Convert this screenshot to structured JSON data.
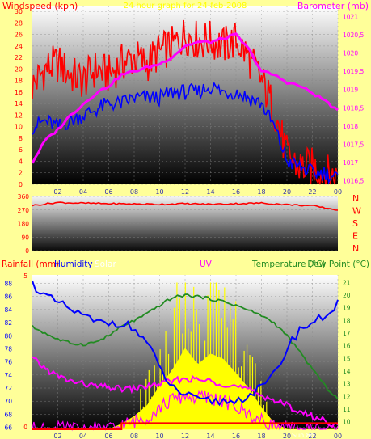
{
  "colors": {
    "background": "#ffff99",
    "wind": "#ff0000",
    "gust_avg": "#0000ff",
    "barometer": "#ff00ff",
    "humidity": "#0000ff",
    "temperature": "#228b22",
    "dewpoint": "#ff00ff",
    "solar": "#ffff00",
    "uv": "#ff00ff",
    "rainfall": "#ff0000",
    "panel_top": "#ffffff",
    "panel_bottom": "#000000"
  },
  "x_tick_labels": [
    "02",
    "04",
    "06",
    "08",
    "10",
    "12",
    "14",
    "16",
    "18",
    "20",
    "22",
    "00"
  ],
  "chart_data": [
    {
      "type": "line",
      "title": "24 hour graph for 24-feb-2008",
      "ylabel": "Windspeed (kph)",
      "y2label": "Barometer (mb)",
      "ylim": [
        0,
        31
      ],
      "y2lim": [
        1016.4,
        1021.3
      ],
      "yticks": [
        "0",
        "2",
        "4",
        "6",
        "8",
        "10",
        "12",
        "14",
        "16",
        "18",
        "20",
        "22",
        "24",
        "26",
        "28",
        "30"
      ],
      "y2ticks": [
        "1016,5",
        "1017",
        "1017,5",
        "1018",
        "1018,5",
        "1019",
        "1019,5",
        "1020",
        "1020,5",
        "1021"
      ],
      "x_hours": [
        0,
        1,
        2,
        3,
        4,
        5,
        6,
        7,
        8,
        9,
        10,
        11,
        12,
        13,
        14,
        15,
        16,
        17,
        18,
        19,
        20,
        21,
        22,
        23,
        24
      ],
      "series": [
        {
          "role": "gust",
          "values": [
            17,
            20,
            21,
            19,
            18,
            20,
            19,
            21,
            22,
            21,
            23,
            24,
            26,
            25,
            25,
            24,
            25,
            22,
            18,
            13,
            5,
            3,
            3,
            2,
            1
          ]
        },
        {
          "role": "average",
          "values": [
            10,
            11,
            10,
            11,
            12,
            13,
            14,
            14,
            15,
            15,
            15,
            16,
            16,
            16,
            17,
            16,
            16,
            15,
            14,
            10,
            4,
            3,
            2,
            2,
            1
          ]
        },
        {
          "role": "barometer",
          "values": [
            1017.0,
            1017.6,
            1017.9,
            1018.3,
            1018.6,
            1018.9,
            1019.1,
            1019.4,
            1019.5,
            1019.6,
            1019.7,
            1019.9,
            1020.2,
            1020.3,
            1020.3,
            1020.4,
            1020.5,
            1020.1,
            1019.5,
            1019.4,
            1019.2,
            1019.1,
            1018.9,
            1018.7,
            1018.4
          ]
        }
      ]
    },
    {
      "type": "line",
      "ylabel_ticks": [
        "0",
        "90",
        "180",
        "270",
        "360"
      ],
      "ylim": [
        0,
        360
      ],
      "compass": [
        "N",
        "W",
        "S",
        "E",
        "N"
      ],
      "x_hours": [
        0,
        2,
        4,
        6,
        8,
        10,
        12,
        14,
        16,
        18,
        20,
        22,
        24
      ],
      "series": [
        {
          "role": "direction",
          "values": [
            300,
            320,
            315,
            312,
            310,
            308,
            312,
            308,
            312,
            316,
            306,
            298,
            270
          ]
        }
      ]
    },
    {
      "type": "line",
      "legend": {
        "rainfall": "Rainfall (mm)",
        "humidity": "Humidity",
        "solar": "Solar",
        "uv": "UV",
        "temperature": "Temperature (°C)",
        "dewpoint": "Dew Point (°C)"
      },
      "left_ticks": [
        "66",
        "68",
        "70",
        "72",
        "74",
        "76",
        "78",
        "80",
        "82",
        "84",
        "86",
        "88"
      ],
      "left_ylim": [
        65.7,
        89.3
      ],
      "rain_ticks": [
        "0",
        "5"
      ],
      "right_ticks": [
        "10",
        "11",
        "12",
        "13",
        "14",
        "15",
        "16",
        "17",
        "18",
        "19",
        "20",
        "21"
      ],
      "right_ylim": [
        9.4,
        21.6
      ],
      "sun_label": "Sun 8h",
      "x_hours": [
        0,
        1,
        2,
        3,
        4,
        5,
        6,
        7,
        8,
        9,
        10,
        11,
        12,
        13,
        14,
        15,
        16,
        17,
        18,
        19,
        20,
        21,
        22,
        23,
        24
      ],
      "series": [
        {
          "role": "humidity",
          "values": [
            88,
            86,
            85,
            84,
            83,
            82,
            82,
            82,
            81,
            79,
            75,
            72,
            71,
            70,
            70,
            70,
            70,
            71,
            72,
            74,
            78,
            81,
            82,
            83,
            85
          ]
        },
        {
          "role": "temperature",
          "values": [
            17.5,
            17.0,
            16.5,
            16.2,
            16.1,
            16.3,
            16.8,
            17.5,
            18.0,
            18.5,
            19.2,
            19.8,
            20.0,
            19.9,
            19.7,
            19.5,
            19.2,
            18.8,
            18.4,
            17.8,
            16.8,
            15.5,
            14.2,
            12.8,
            11.8
          ]
        },
        {
          "role": "dewpoint",
          "values": [
            15.0,
            14.2,
            13.6,
            13.2,
            13.0,
            12.8,
            12.7,
            12.6,
            12.6,
            12.8,
            13.0,
            13.2,
            13.4,
            13.3,
            13.2,
            13.0,
            12.8,
            12.5,
            12.1,
            11.7,
            11.3,
            10.8,
            10.4,
            10.1,
            9.6
          ]
        },
        {
          "role": "solar",
          "values": [
            0,
            0,
            0,
            0,
            0,
            0,
            0,
            0.05,
            0.12,
            0.22,
            0.4,
            0.55,
            0.75,
            0.6,
            0.7,
            0.65,
            0.52,
            0.38,
            0.2,
            0.06,
            0,
            0,
            0,
            0,
            0
          ]
        },
        {
          "role": "uv",
          "values": [
            0,
            0,
            0,
            0,
            0,
            0,
            0,
            0.02,
            0.05,
            0.08,
            0.14,
            0.19,
            0.22,
            0.2,
            0.21,
            0.18,
            0.14,
            0.1,
            0.05,
            0.02,
            0,
            0,
            0,
            0,
            0
          ]
        },
        {
          "role": "rainfall",
          "values": [
            0,
            0,
            0,
            0,
            0,
            0,
            0,
            1,
            1,
            1,
            1,
            1,
            1,
            1,
            1,
            1,
            1,
            1,
            1,
            1,
            1,
            1,
            1,
            1,
            1
          ]
        }
      ]
    }
  ]
}
